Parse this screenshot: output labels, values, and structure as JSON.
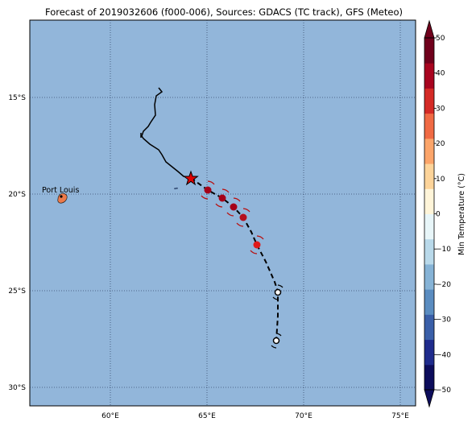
{
  "title": "Forecast of 2019032606 (f000-006), Sources: GDACS (TC track), GFS (Meteo)",
  "map": {
    "ocean_color": "#92b6da",
    "lon_ticks": [
      "60°E",
      "65°E",
      "70°E",
      "75°E"
    ],
    "lat_ticks": [
      "15°S",
      "20°S",
      "25°S",
      "30°S"
    ],
    "place_label": "Port Louis"
  },
  "colorbar": {
    "label": "Min Temperature (°C)",
    "ticks": [
      "50",
      "40",
      "30",
      "20",
      "10",
      "0",
      "−10",
      "−20",
      "−30",
      "−40",
      "−50"
    ],
    "colors": [
      "#0d0d5c",
      "#1f2b8c",
      "#3a5fa8",
      "#5a8cc0",
      "#86b3d6",
      "#b9d9ea",
      "#e8f6f9",
      "#fff5d9",
      "#fdd49a",
      "#fca56a",
      "#f06a44",
      "#d42a26",
      "#a8041f",
      "#70001c"
    ]
  },
  "track": {
    "observed_color": "#000000",
    "forecast_marker_color": "#a60018",
    "storm_symbol_color": "#cc1111"
  }
}
